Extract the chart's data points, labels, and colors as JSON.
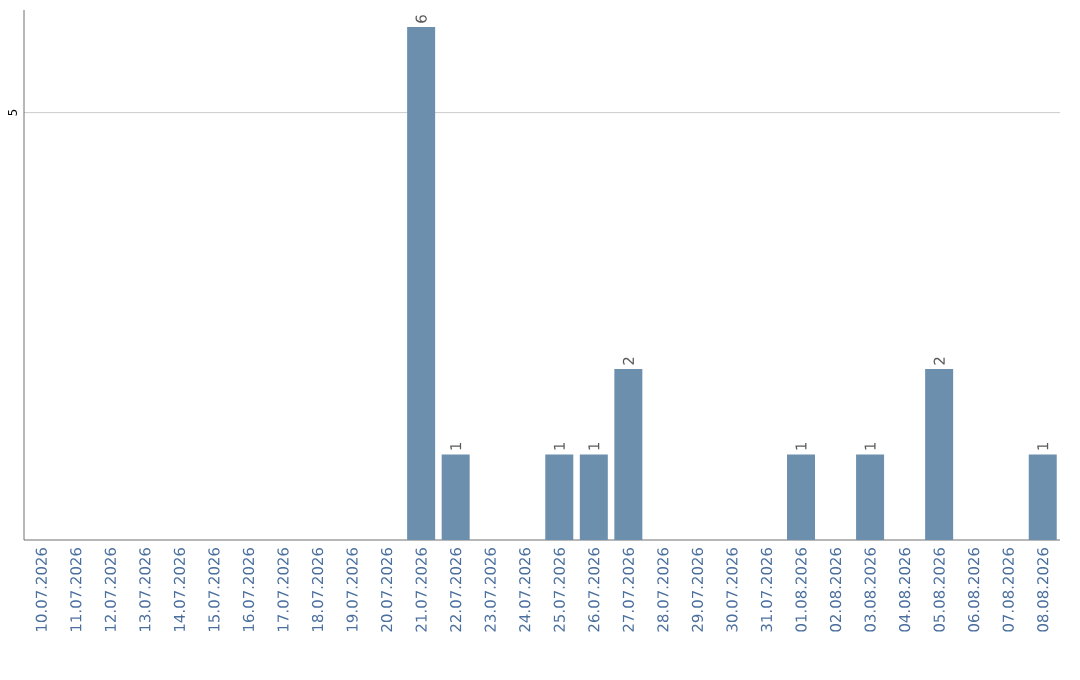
{
  "chart_data": {
    "type": "bar",
    "categories": [
      "10.07.2026",
      "11.07.2026",
      "12.07.2026",
      "13.07.2026",
      "14.07.2026",
      "15.07.2026",
      "16.07.2026",
      "17.07.2026",
      "18.07.2026",
      "19.07.2026",
      "20.07.2026",
      "21.07.2026",
      "22.07.2026",
      "23.07.2026",
      "24.07.2026",
      "25.07.2026",
      "26.07.2026",
      "27.07.2026",
      "28.07.2026",
      "29.07.2026",
      "30.07.2026",
      "31.07.2026",
      "01.08.2026",
      "02.08.2026",
      "03.08.2026",
      "04.08.2026",
      "05.08.2026",
      "06.08.2026",
      "07.08.2026",
      "08.08.2026"
    ],
    "values": [
      0,
      0,
      0,
      0,
      0,
      0,
      0,
      0,
      0,
      0,
      0,
      6,
      1,
      0,
      0,
      1,
      1,
      2,
      0,
      0,
      0,
      0,
      1,
      0,
      1,
      0,
      2,
      0,
      0,
      1
    ],
    "color": "#6d8fae",
    "value_labels": [
      null,
      null,
      null,
      null,
      null,
      null,
      null,
      null,
      null,
      null,
      null,
      "6",
      "1",
      null,
      null,
      "1",
      "1",
      "2",
      null,
      null,
      null,
      null,
      "1",
      null,
      "1",
      null,
      "2",
      null,
      null,
      "1"
    ],
    "ylim": [
      0,
      6.2
    ],
    "yticks": [
      5
    ],
    "grid": "y"
  }
}
